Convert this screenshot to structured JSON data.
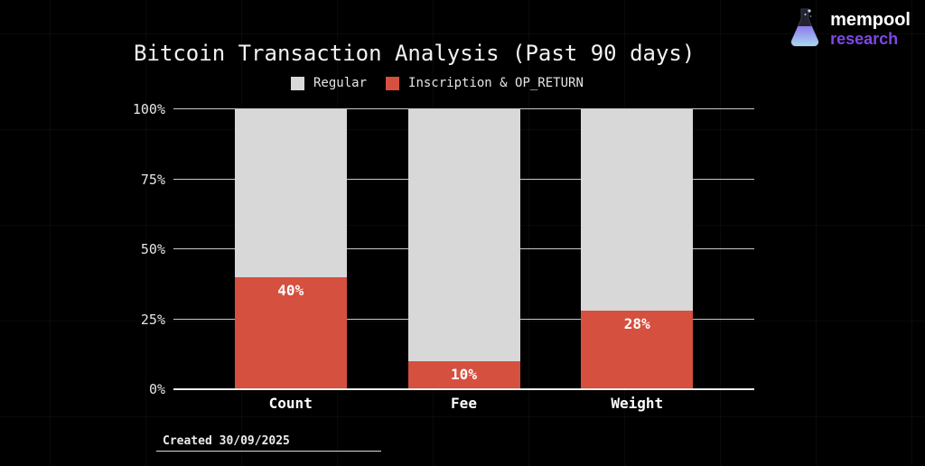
{
  "branding": {
    "name": "mempool",
    "sub": "research"
  },
  "legend": [
    {
      "label": "Regular",
      "color": "#d8d8d8"
    },
    {
      "label": "Inscription & OP_RETURN",
      "color": "#d5503f"
    }
  ],
  "footer": {
    "created": "Created 30/09/2025"
  },
  "chart_data": {
    "type": "bar",
    "stacked": true,
    "title": "Bitcoin Transaction Analysis (Past 90 days)",
    "categories": [
      "Count",
      "Fee",
      "Weight"
    ],
    "series": [
      {
        "name": "Inscription & OP_RETURN",
        "values": [
          40,
          10,
          28
        ],
        "color": "#d5503f"
      },
      {
        "name": "Regular",
        "values": [
          60,
          90,
          72
        ],
        "color": "#d8d8d8"
      }
    ],
    "value_labels": [
      "40%",
      "10%",
      "28%"
    ],
    "yticks": [
      "0%",
      "25%",
      "50%",
      "75%",
      "100%"
    ],
    "ylim": [
      0,
      100
    ],
    "ylabel": "",
    "xlabel": "",
    "legend_position": "top",
    "grid": "horizontal"
  },
  "colors": {
    "background": "#000000",
    "regular": "#d8d8d8",
    "inscription": "#d5503f",
    "gridline": "#c9c9c9",
    "axis": "#eeeeee",
    "title_text": "#f2f2f2",
    "research_purple": "#7f48e8"
  }
}
